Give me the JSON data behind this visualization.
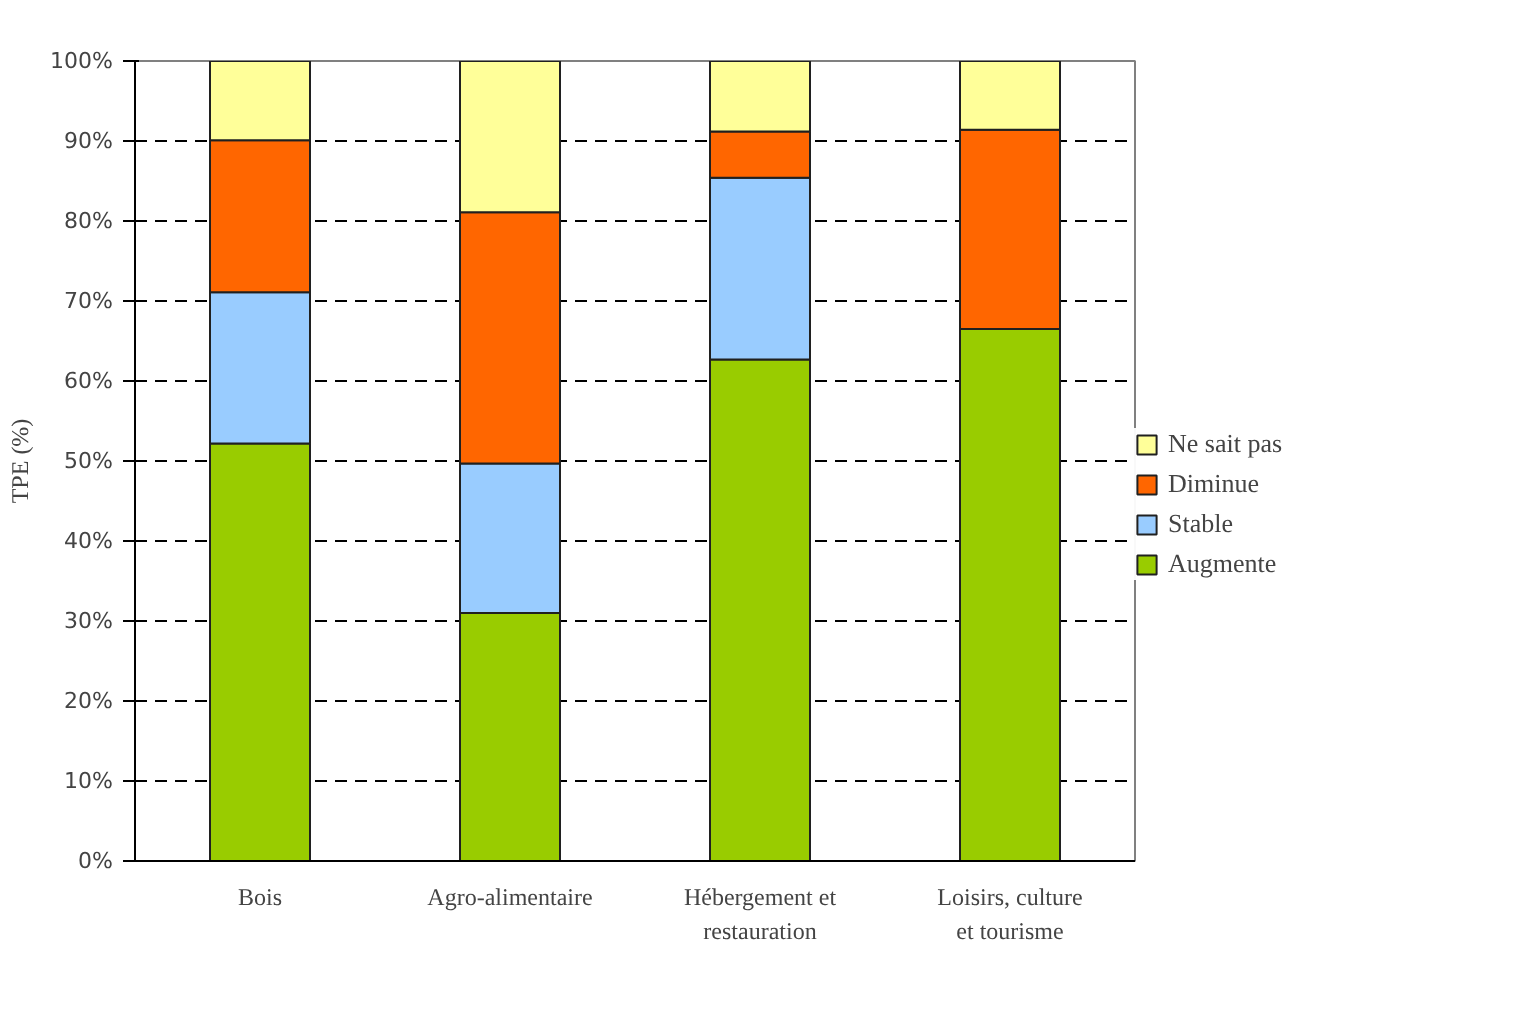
{
  "chart_data": {
    "type": "bar",
    "stacked": true,
    "ylabel": "TPE (%)",
    "categories": [
      "Bois",
      "Agro-alimentaire",
      "Hébergement et restauration",
      "Loisirs, culture et tourisme"
    ],
    "series": [
      {
        "name": "Augmente",
        "color": "#99cc00",
        "values": [
          52.2,
          31.0,
          62.7,
          66.5
        ]
      },
      {
        "name": "Stable",
        "color": "#99ccff",
        "values": [
          18.9,
          18.7,
          22.7,
          null
        ]
      },
      {
        "name": "Diminue",
        "color": "#ff6600",
        "values": [
          19.0,
          31.4,
          5.8,
          24.9
        ]
      },
      {
        "name": "Ne sait pas",
        "color": "#ffff99",
        "values": [
          9.9,
          18.9,
          8.8,
          8.6
        ]
      }
    ],
    "ylim": [
      0,
      100
    ],
    "yticks": [
      {
        "value": 0,
        "label": "0%"
      },
      {
        "value": 10,
        "label": "10%"
      },
      {
        "value": 20,
        "label": "20%"
      },
      {
        "value": 30,
        "label": "30%"
      },
      {
        "value": 40,
        "label": "40%"
      },
      {
        "value": 50,
        "label": "50%"
      },
      {
        "value": 60,
        "label": "60%"
      },
      {
        "value": 70,
        "label": "70%"
      },
      {
        "value": 80,
        "label": "80%"
      },
      {
        "value": 90,
        "label": "90%"
      },
      {
        "value": 100,
        "label": "100%"
      }
    ],
    "grid": "y",
    "legend": "right"
  }
}
